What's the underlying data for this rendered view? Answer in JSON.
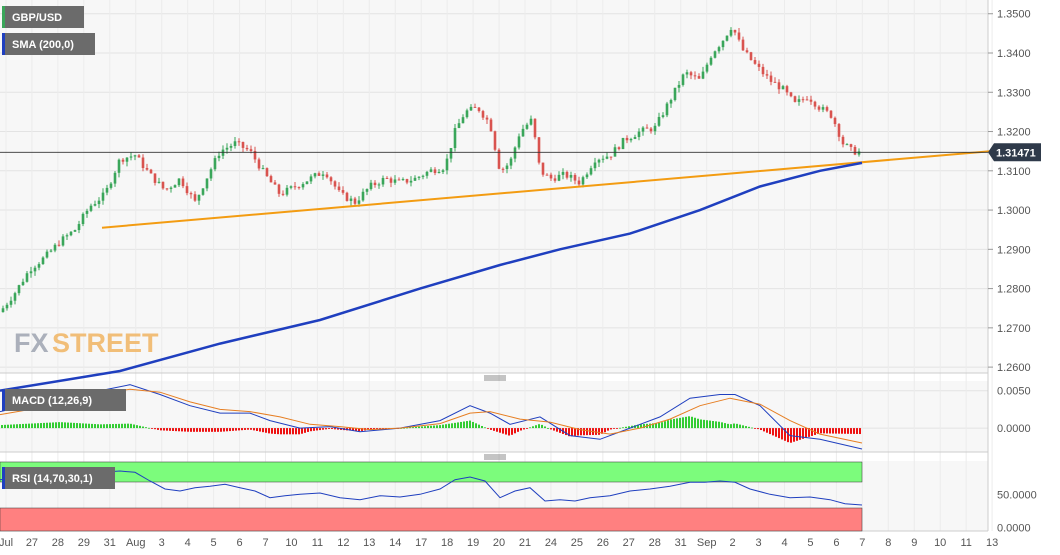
{
  "chart_data": {
    "type": "candlestick",
    "instrument": "GBP/USD",
    "sma_label": "SMA (200,0)",
    "last_price": "1.31471",
    "colors": {
      "up": "#3aa65a",
      "down": "#d9534f",
      "sma": "#1f3fbf",
      "trendline": "#f39c12",
      "macd": "#1f3fbf",
      "signal": "#e67e22"
    },
    "ylim": [
      1.2585,
      1.3535
    ],
    "y_ticks": [
      "1.2600",
      "1.2700",
      "1.2800",
      "1.2900",
      "1.3000",
      "1.3100",
      "1.3200",
      "1.3300",
      "1.3400",
      "1.3500"
    ],
    "x_ticks": [
      "Jul",
      "27",
      "28",
      "29",
      "31",
      "Aug",
      "3",
      "4",
      "5",
      "6",
      "7",
      "10",
      "11",
      "12",
      "13",
      "14",
      "17",
      "18",
      "19",
      "20",
      "21",
      "24",
      "25",
      "26",
      "27",
      "28",
      "31",
      "Sep",
      "2",
      "3",
      "4",
      "5",
      "6",
      "7",
      "8",
      "9",
      "10",
      "11",
      "13"
    ],
    "sma": [
      [
        0,
        1.254
      ],
      [
        120,
        1.259
      ],
      [
        220,
        1.266
      ],
      [
        320,
        1.272
      ],
      [
        420,
        1.28
      ],
      [
        500,
        1.286
      ],
      [
        560,
        1.29
      ],
      [
        630,
        1.294
      ],
      [
        700,
        1.3
      ],
      [
        760,
        1.306
      ],
      [
        820,
        1.31
      ],
      [
        862,
        1.312
      ]
    ],
    "trendline": [
      [
        102,
        1.2955
      ],
      [
        990,
        1.315
      ]
    ],
    "price": [
      [
        0,
        1.274
      ],
      [
        15,
        1.279
      ],
      [
        30,
        1.285
      ],
      [
        45,
        1.288
      ],
      [
        60,
        1.292
      ],
      [
        75,
        1.295
      ],
      [
        90,
        1.301
      ],
      [
        105,
        1.304
      ],
      [
        120,
        1.313
      ],
      [
        135,
        1.314
      ],
      [
        150,
        1.309
      ],
      [
        165,
        1.305
      ],
      [
        180,
        1.308
      ],
      [
        195,
        1.302
      ],
      [
        210,
        1.31
      ],
      [
        220,
        1.315
      ],
      [
        235,
        1.317
      ],
      [
        250,
        1.315
      ],
      [
        265,
        1.309
      ],
      [
        280,
        1.304
      ],
      [
        295,
        1.306
      ],
      [
        310,
        1.308
      ],
      [
        325,
        1.31
      ],
      [
        340,
        1.304
      ],
      [
        355,
        1.302
      ],
      [
        370,
        1.306
      ],
      [
        385,
        1.308
      ],
      [
        400,
        1.307
      ],
      [
        415,
        1.308
      ],
      [
        430,
        1.31
      ],
      [
        445,
        1.311
      ],
      [
        455,
        1.32
      ],
      [
        465,
        1.325
      ],
      [
        478,
        1.326
      ],
      [
        490,
        1.322
      ],
      [
        500,
        1.31
      ],
      [
        510,
        1.312
      ],
      [
        520,
        1.32
      ],
      [
        532,
        1.323
      ],
      [
        540,
        1.31
      ],
      [
        550,
        1.308
      ],
      [
        565,
        1.309
      ],
      [
        580,
        1.307
      ],
      [
        595,
        1.313
      ],
      [
        610,
        1.314
      ],
      [
        625,
        1.318
      ],
      [
        640,
        1.32
      ],
      [
        655,
        1.321
      ],
      [
        670,
        1.328
      ],
      [
        685,
        1.335
      ],
      [
        700,
        1.333
      ],
      [
        712,
        1.34
      ],
      [
        722,
        1.343
      ],
      [
        732,
        1.347
      ],
      [
        742,
        1.341
      ],
      [
        755,
        1.337
      ],
      [
        770,
        1.333
      ],
      [
        782,
        1.331
      ],
      [
        795,
        1.327
      ],
      [
        808,
        1.329
      ],
      [
        820,
        1.326
      ],
      [
        832,
        1.324
      ],
      [
        843,
        1.317
      ],
      [
        852,
        1.315
      ],
      [
        862,
        1.3147
      ]
    ],
    "macd_label": "MACD (12,26,9)",
    "macd_ylim": [
      -0.0032,
      0.0063
    ],
    "macd_ticks": [
      "0.0050",
      "0.0000"
    ],
    "macd": [
      [
        0,
        0.0022
      ],
      [
        60,
        0.004
      ],
      [
        100,
        0.005
      ],
      [
        130,
        0.0058
      ],
      [
        160,
        0.0045
      ],
      [
        190,
        0.003
      ],
      [
        220,
        0.002
      ],
      [
        250,
        0.002
      ],
      [
        270,
        0.001
      ],
      [
        300,
        0.0
      ],
      [
        330,
        0.0002
      ],
      [
        360,
        -0.0005
      ],
      [
        400,
        0.0
      ],
      [
        440,
        0.001
      ],
      [
        470,
        0.003
      ],
      [
        490,
        0.002
      ],
      [
        510,
        0.0005
      ],
      [
        540,
        0.0015
      ],
      [
        570,
        -0.001
      ],
      [
        600,
        -0.0015
      ],
      [
        630,
        0.0
      ],
      [
        660,
        0.0015
      ],
      [
        690,
        0.004
      ],
      [
        720,
        0.0045
      ],
      [
        735,
        0.0045
      ],
      [
        760,
        0.003
      ],
      [
        790,
        -0.001
      ],
      [
        820,
        -0.0015
      ],
      [
        862,
        -0.0028
      ]
    ],
    "signal": [
      [
        0,
        0.0018
      ],
      [
        60,
        0.0032
      ],
      [
        100,
        0.0045
      ],
      [
        130,
        0.0052
      ],
      [
        160,
        0.0048
      ],
      [
        190,
        0.0035
      ],
      [
        220,
        0.0025
      ],
      [
        250,
        0.0022
      ],
      [
        280,
        0.0015
      ],
      [
        310,
        0.0005
      ],
      [
        340,
        0.0002
      ],
      [
        370,
        -0.0002
      ],
      [
        400,
        0.0
      ],
      [
        440,
        0.0006
      ],
      [
        470,
        0.002
      ],
      [
        490,
        0.0022
      ],
      [
        520,
        0.0012
      ],
      [
        550,
        0.0008
      ],
      [
        580,
        -0.0002
      ],
      [
        610,
        -0.0008
      ],
      [
        640,
        0.0
      ],
      [
        670,
        0.0012
      ],
      [
        700,
        0.003
      ],
      [
        730,
        0.004
      ],
      [
        760,
        0.0032
      ],
      [
        790,
        0.001
      ],
      [
        820,
        -0.0008
      ],
      [
        862,
        -0.002
      ]
    ],
    "rsi_label": "RSI (14,70,30,1)",
    "rsi_ylim": [
      -5,
      100
    ],
    "rsi_ticks": [
      "50.0000",
      "0.0000"
    ],
    "rsi": [
      [
        0,
        72
      ],
      [
        30,
        78
      ],
      [
        60,
        80
      ],
      [
        90,
        82
      ],
      [
        120,
        85
      ],
      [
        135,
        83
      ],
      [
        150,
        70
      ],
      [
        165,
        58
      ],
      [
        180,
        55
      ],
      [
        195,
        60
      ],
      [
        210,
        62
      ],
      [
        225,
        65
      ],
      [
        240,
        60
      ],
      [
        255,
        55
      ],
      [
        270,
        45
      ],
      [
        285,
        48
      ],
      [
        300,
        50
      ],
      [
        320,
        52
      ],
      [
        340,
        45
      ],
      [
        360,
        42
      ],
      [
        380,
        48
      ],
      [
        400,
        46
      ],
      [
        420,
        50
      ],
      [
        440,
        58
      ],
      [
        455,
        72
      ],
      [
        470,
        76
      ],
      [
        485,
        70
      ],
      [
        500,
        45
      ],
      [
        515,
        55
      ],
      [
        530,
        60
      ],
      [
        545,
        40
      ],
      [
        560,
        42
      ],
      [
        575,
        40
      ],
      [
        590,
        45
      ],
      [
        610,
        48
      ],
      [
        630,
        55
      ],
      [
        650,
        58
      ],
      [
        670,
        62
      ],
      [
        690,
        68
      ],
      [
        705,
        68
      ],
      [
        720,
        70
      ],
      [
        735,
        68
      ],
      [
        750,
        58
      ],
      [
        770,
        50
      ],
      [
        790,
        45
      ],
      [
        810,
        46
      ],
      [
        830,
        42
      ],
      [
        845,
        36
      ],
      [
        862,
        34
      ]
    ]
  }
}
